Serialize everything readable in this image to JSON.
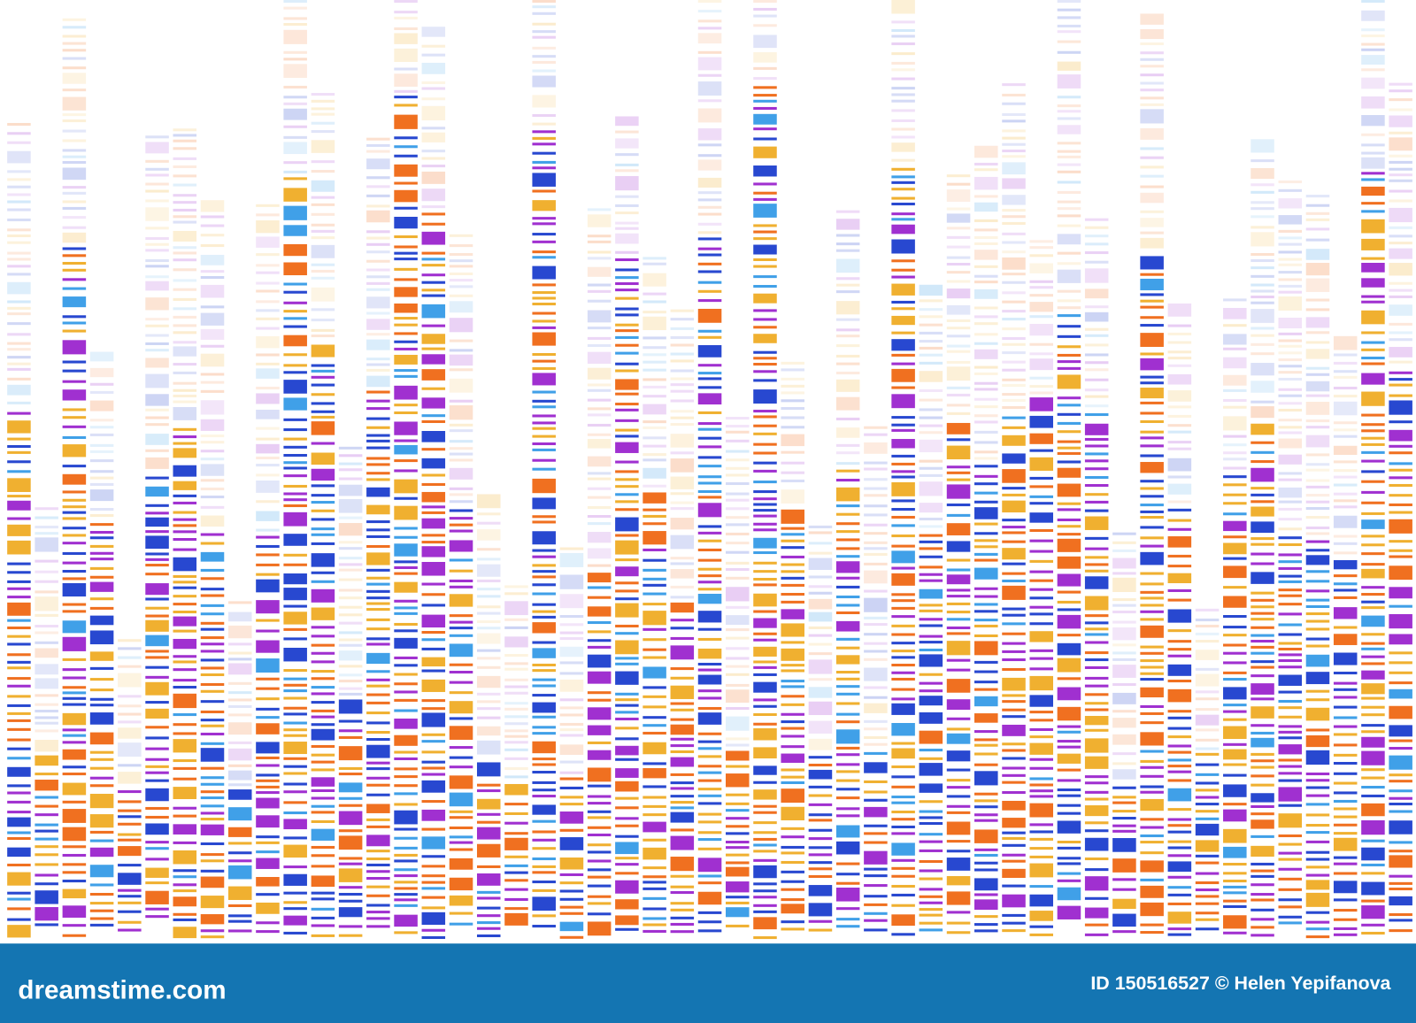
{
  "footer": {
    "site": "dreamstime.com",
    "credit": "ID 150516527 © Helen Yepifanova"
  }
}
